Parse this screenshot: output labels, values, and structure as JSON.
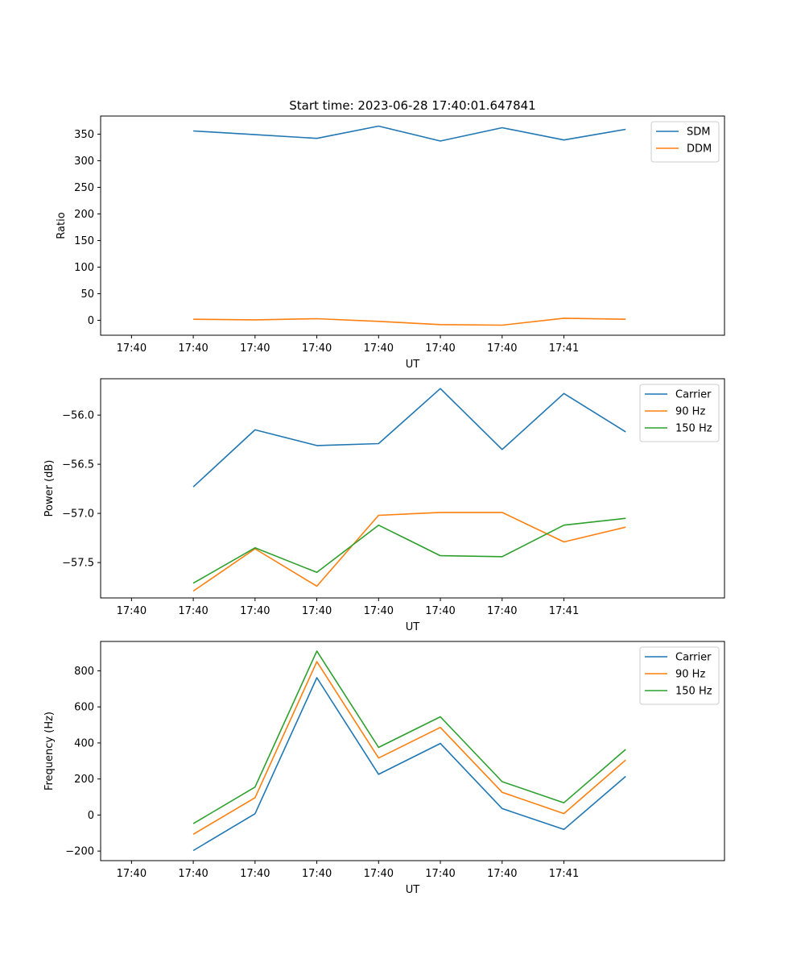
{
  "title": "Start time: 2023-06-28 17:40:01.647841",
  "colors": {
    "c0": "#1f77b4",
    "c1": "#ff7f0e",
    "c2": "#2ca02c"
  },
  "chart_data": [
    {
      "type": "line",
      "xlabel": "UT",
      "ylabel": "Ratio",
      "legend_position": "upper-right",
      "xticks": [
        "17:40",
        "17:40",
        "17:40",
        "17:40",
        "17:40",
        "17:40",
        "17:40",
        "17:41"
      ],
      "xlim": [
        -0.5,
        9.6
      ],
      "x": [
        1,
        2,
        3,
        4,
        5,
        6,
        7,
        8
      ],
      "yticks": [
        "0",
        "50",
        "100",
        "150",
        "200",
        "250",
        "300",
        "350"
      ],
      "ytick_values": [
        0,
        50,
        100,
        150,
        200,
        250,
        300,
        350
      ],
      "ylim": [
        -28,
        384
      ],
      "series": [
        {
          "name": "SDM",
          "color": "#1f77b4",
          "values": [
            356,
            349,
            342,
            365,
            337,
            362,
            339,
            359
          ]
        },
        {
          "name": "DDM",
          "color": "#ff7f0e",
          "values": [
            2,
            1,
            3,
            -2,
            -8,
            -9,
            4,
            2
          ]
        }
      ]
    },
    {
      "type": "line",
      "xlabel": "UT",
      "ylabel": "Power (dB)",
      "legend_position": "upper-right",
      "xticks": [
        "17:40",
        "17:40",
        "17:40",
        "17:40",
        "17:40",
        "17:40",
        "17:40",
        "17:41"
      ],
      "xlim": [
        -0.5,
        9.6
      ],
      "x": [
        1,
        2,
        3,
        4,
        5,
        6,
        7,
        8
      ],
      "yticks": [
        "−57.5",
        "−57.0",
        "−56.5",
        "−56.0"
      ],
      "ytick_values": [
        -57.5,
        -57.0,
        -56.5,
        -56.0
      ],
      "ylim": [
        -57.86,
        -55.63
      ],
      "series": [
        {
          "name": "Carrier",
          "color": "#1f77b4",
          "values": [
            -56.73,
            -56.15,
            -56.31,
            -56.29,
            -55.73,
            -56.35,
            -55.78,
            -56.17
          ]
        },
        {
          "name": "90 Hz",
          "color": "#ff7f0e",
          "values": [
            -57.79,
            -57.36,
            -57.74,
            -57.02,
            -56.99,
            -56.99,
            -57.29,
            -57.14
          ]
        },
        {
          "name": "150 Hz",
          "color": "#2ca02c",
          "values": [
            -57.71,
            -57.35,
            -57.6,
            -57.12,
            -57.43,
            -57.44,
            -57.12,
            -57.05
          ]
        }
      ]
    },
    {
      "type": "line",
      "xlabel": "UT",
      "ylabel": "Frequency (Hz)",
      "legend_position": "upper-right",
      "xticks": [
        "17:40",
        "17:40",
        "17:40",
        "17:40",
        "17:40",
        "17:40",
        "17:40",
        "17:41"
      ],
      "xlim": [
        -0.5,
        9.6
      ],
      "x": [
        1,
        2,
        3,
        4,
        5,
        6,
        7,
        8
      ],
      "yticks": [
        "−200",
        "0",
        "200",
        "400",
        "600",
        "800"
      ],
      "ytick_values": [
        -200,
        0,
        200,
        400,
        600,
        800
      ],
      "ylim": [
        -253,
        963
      ],
      "series": [
        {
          "name": "Carrier",
          "color": "#1f77b4",
          "values": [
            -197,
            7,
            762,
            226,
            397,
            36,
            -80,
            214
          ]
        },
        {
          "name": "90 Hz",
          "color": "#ff7f0e",
          "values": [
            -107,
            96,
            851,
            316,
            486,
            126,
            8,
            305
          ]
        },
        {
          "name": "150 Hz",
          "color": "#2ca02c",
          "values": [
            -48,
            155,
            910,
            375,
            545,
            185,
            68,
            364
          ]
        }
      ]
    }
  ]
}
